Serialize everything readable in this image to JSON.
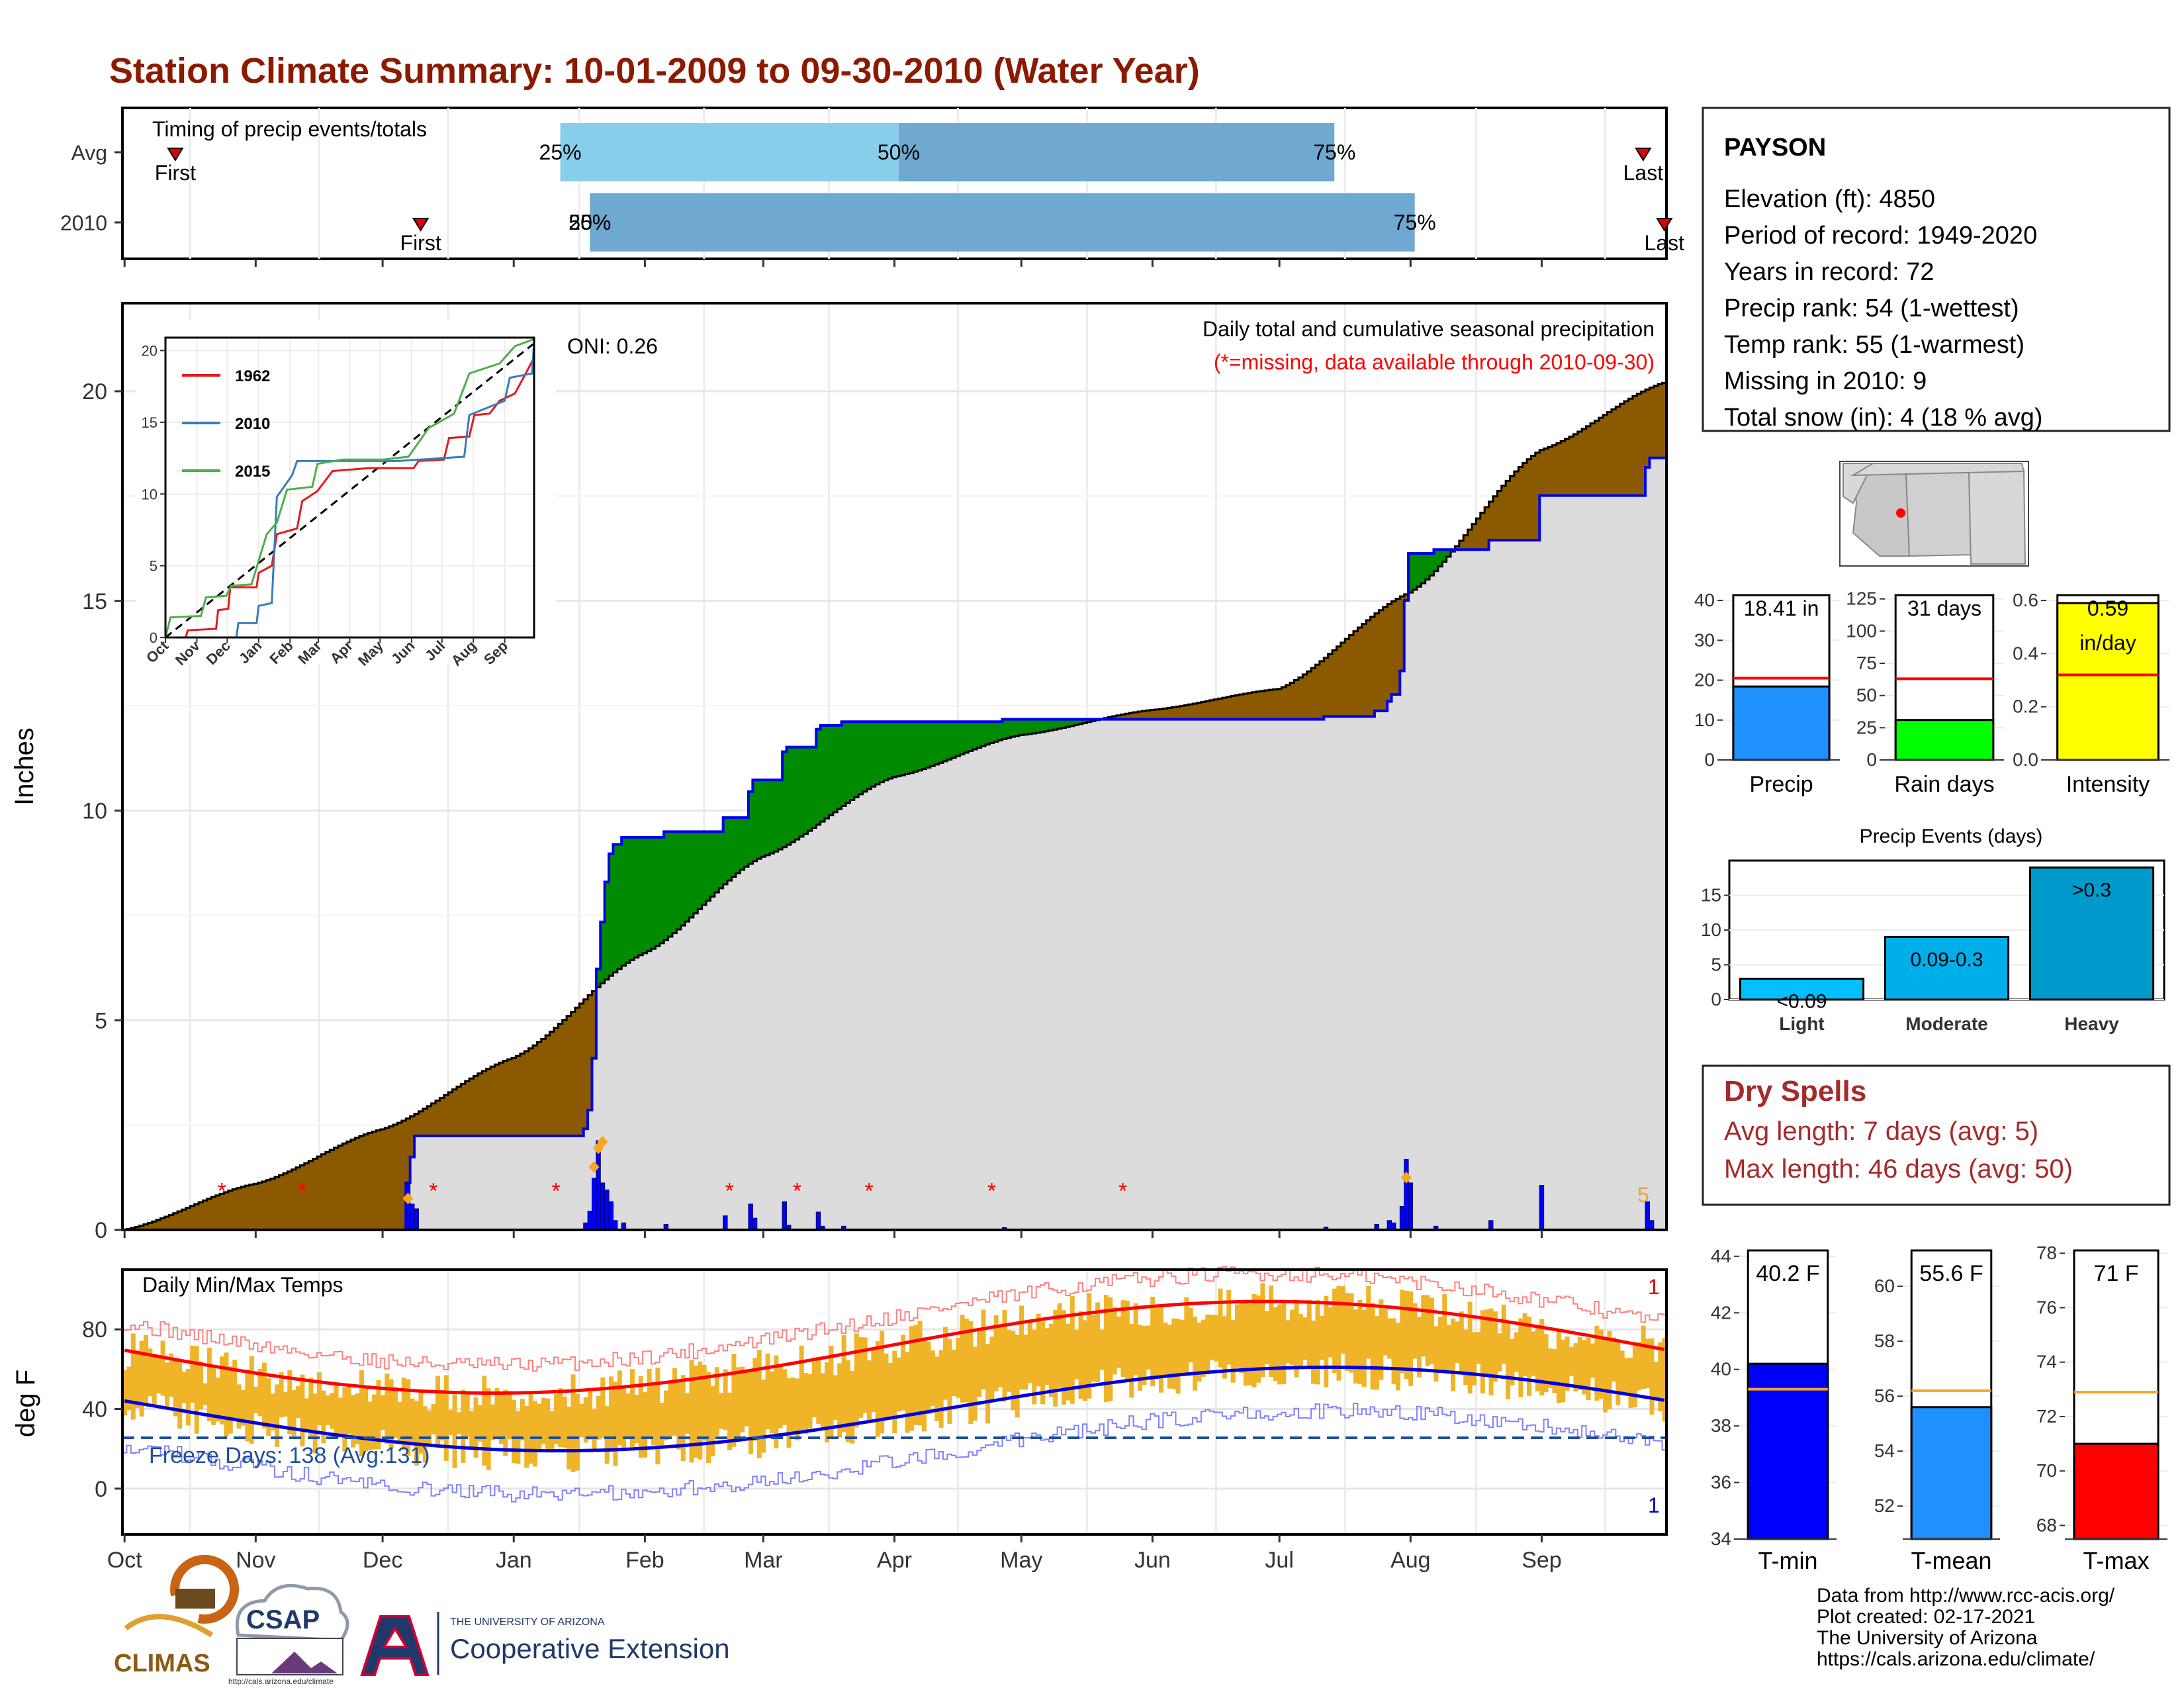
{
  "title": "Station Climate Summary: 10-01-2009 to 09-30-2010 (Water Year)",
  "timing": {
    "label": "Timing of precip events/totals",
    "rows": [
      {
        "name": "Avg",
        "first": "2009-10-13",
        "q25": "2010-01-12",
        "q50": "2010-04-02",
        "q75": "2010-07-14",
        "last": "2010-09-25"
      },
      {
        "name": "2010",
        "first": "2009-12-10",
        "q25": "2010-01-19",
        "q50": "2010-01-19",
        "q75": "2010-08-02",
        "last": "2010-09-30"
      }
    ],
    "first_label": "First",
    "last_label": "Last",
    "q25_label": "25%",
    "q50_label": "50%",
    "q75_label": "75%"
  },
  "precip": {
    "ylabel": "Inches",
    "legend_title": "Daily total and cumulative seasonal precipitation",
    "missing_note": "(*=missing, data available through 2010-09-30)",
    "oni": "ONI: 0.26",
    "yticks": [
      "0",
      "5",
      "10",
      "15",
      "20"
    ],
    "corner_value": "5"
  },
  "temps": {
    "label": "Daily Min/Max Temps",
    "ylabel": "deg F",
    "yticks": [
      "0",
      "40",
      "80"
    ],
    "freeze": "Freeze Days: 138 (Avg:131)",
    "rec_high_count": "1",
    "rec_low_count": "1"
  },
  "months": [
    "Oct",
    "Nov",
    "Dec",
    "Jan",
    "Feb",
    "Mar",
    "Apr",
    "May",
    "Jun",
    "Jul",
    "Aug",
    "Sep"
  ],
  "inset": {
    "yticks": [
      "0",
      "5",
      "10",
      "15",
      "20"
    ],
    "months": [
      "Oct",
      "Nov",
      "Dec",
      "Jan",
      "Feb",
      "Mar",
      "Apr",
      "May",
      "Jun",
      "Jul",
      "Aug",
      "Sep"
    ],
    "legend": [
      {
        "name": "1962",
        "color": "#e41a1c"
      },
      {
        "name": "2010",
        "color": "#377eb8"
      },
      {
        "name": "2015",
        "color": "#4daf4a"
      }
    ]
  },
  "station": {
    "name": "PAYSON",
    "lines": [
      "Elevation (ft): 4850",
      "Period of record: 1949-2020",
      "Years in record: 72",
      "Precip rank: 54 (1-wettest)",
      "Temp rank: 55 (1-warmest)",
      "Missing in 2010: 9",
      "Total snow (in): 4 (18 % avg)"
    ]
  },
  "small_bars": [
    {
      "label": "Precip",
      "value": 18.41,
      "avg": 20.5,
      "text": [
        "18.41 in"
      ],
      "ymin": 0,
      "ymax": 42,
      "ticks": [
        "0",
        "10",
        "20",
        "30",
        "40"
      ],
      "tickvals": [
        0,
        10,
        20,
        30,
        40
      ],
      "color": "#1e90ff"
    },
    {
      "label": "Rain days",
      "value": 31,
      "avg": 63,
      "text": [
        "31 days"
      ],
      "ymin": 0,
      "ymax": 130,
      "ticks": [
        "0",
        "25",
        "50",
        "75",
        "100",
        "125"
      ],
      "tickvals": [
        0,
        25,
        50,
        75,
        100,
        125
      ],
      "color": "#00ff00"
    },
    {
      "label": "Intensity",
      "value": 0.59,
      "avg": 0.32,
      "text": [
        "0.59",
        "in/day"
      ],
      "ymin": 0,
      "ymax": 0.63,
      "ticks": [
        "0.0",
        "0.2",
        "0.4",
        "0.6"
      ],
      "tickvals": [
        0,
        0.2,
        0.4,
        0.6
      ],
      "color": "#ffff00"
    }
  ],
  "events": {
    "title": "Precip Events (days)",
    "ticks": [
      "0",
      "5",
      "10",
      "15"
    ],
    "tickvals": [
      0,
      5,
      10,
      15
    ],
    "ymax": 20,
    "bars": [
      {
        "label": "Light",
        "value": 3,
        "text": "<0.09",
        "color": "#00bfff"
      },
      {
        "label": "Moderate",
        "value": 9,
        "text": "0.09-0.3",
        "color": "#00aeea"
      },
      {
        "label": "Heavy",
        "value": 19,
        "text": ">0.3",
        "color": "#0099cc"
      }
    ]
  },
  "dry": {
    "title": "Dry Spells",
    "avg": "Avg length: 7 days (avg: 5)",
    "max": "Max length: 46 days (avg: 50)"
  },
  "temp_bars": [
    {
      "label": "T-min",
      "value": 40.2,
      "avg": 39.3,
      "text": "40.2 F",
      "ymin": 34,
      "ymax": 44.3,
      "ticks": [
        "34",
        "36",
        "38",
        "40",
        "42",
        "44"
      ],
      "tickvals": [
        34,
        36,
        38,
        40,
        42,
        44
      ],
      "color": "#0000ff"
    },
    {
      "label": "T-mean",
      "value": 55.6,
      "avg": 56.2,
      "text": "55.6 F",
      "ymin": 50.8,
      "ymax": 61.4,
      "ticks": [
        "52",
        "54",
        "56",
        "58",
        "60"
      ],
      "tickvals": [
        52,
        54,
        56,
        58,
        60
      ],
      "color": "#1e90ff"
    },
    {
      "label": "T-max",
      "value": 71,
      "avg": 72.9,
      "text": "71 F",
      "ymin": 67.5,
      "ymax": 78.2,
      "ticks": [
        "68",
        "70",
        "72",
        "74",
        "76",
        "78"
      ],
      "tickvals": [
        68,
        70,
        72,
        74,
        76,
        78
      ],
      "color": "#ff0000"
    }
  ],
  "footer": {
    "lines": [
      "Data from http://www.rcc-acis.org/",
      "Plot created: 02-17-2021",
      "The University of Arizona",
      "https://cals.arizona.edu/climate/"
    ],
    "climas": "CLIMAS",
    "csap": "CSAP",
    "ua_small": "THE UNIVERSITY OF ARIZONA",
    "coop": "Cooperative Extension",
    "csap_url": "http://cals.arizona.edu/climate"
  },
  "colors": {
    "title": "#8b1a00",
    "brown": "#8b5a00",
    "green": "#008b00",
    "area_gray": "#dcdcdc",
    "cum_blue": "#0000ee",
    "temp_bar": "#f0b428",
    "red_line": "#ff0000",
    "blue_line": "#0000dd",
    "dry_red": "#a52a2a",
    "light_blue": "#87ceeb",
    "mid_blue": "#6fa8d0"
  }
}
